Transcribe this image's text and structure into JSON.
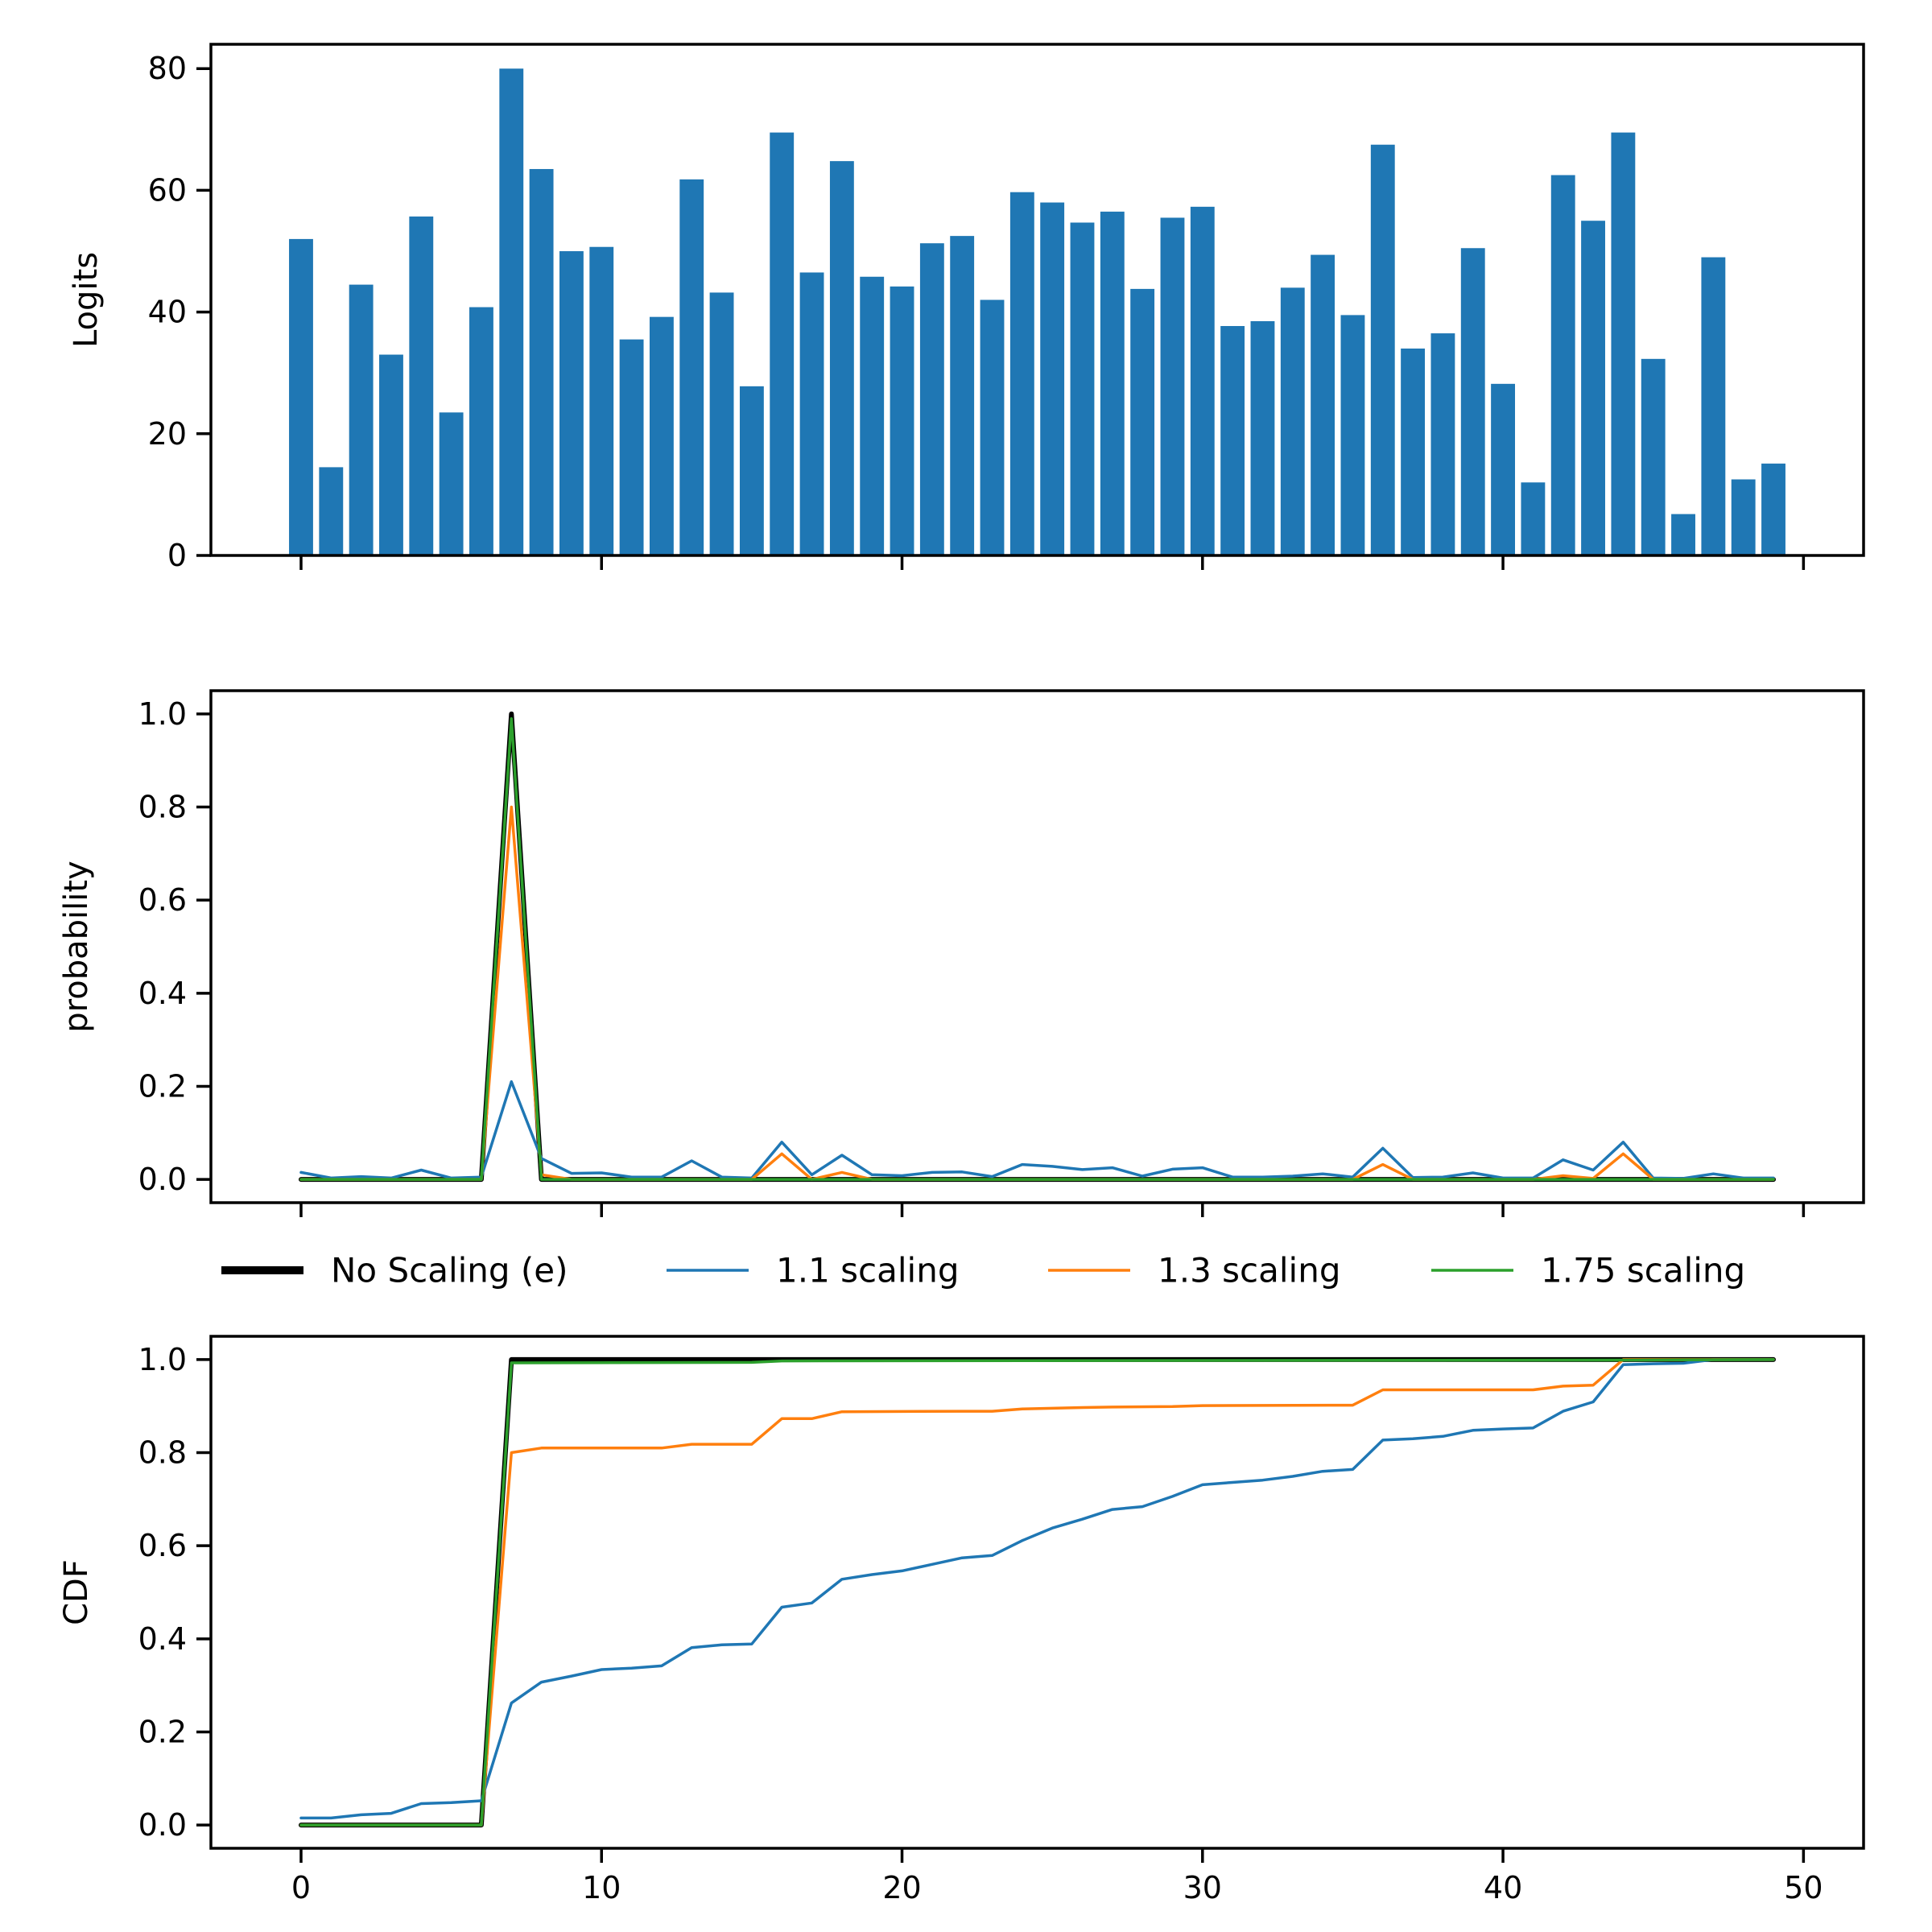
{
  "chart_data": [
    {
      "type": "bar",
      "ylabel": "Logits",
      "ylim": [
        0,
        84
      ],
      "xlim": [
        -3,
        52
      ],
      "yticks": [
        "0",
        "20",
        "40",
        "60",
        "80"
      ],
      "xticks": [
        0,
        10,
        20,
        30,
        40,
        50
      ],
      "x_tick_labels_shown": false,
      "color": "#1f77b4",
      "x": [
        0,
        1,
        2,
        3,
        4,
        5,
        6,
        7,
        8,
        9,
        10,
        11,
        12,
        13,
        14,
        15,
        16,
        17,
        18,
        19,
        20,
        21,
        22,
        23,
        24,
        25,
        26,
        27,
        28,
        29,
        30,
        31,
        32,
        33,
        34,
        35,
        36,
        37,
        38,
        39,
        40,
        41,
        42,
        43,
        44,
        45,
        46,
        47,
        48,
        49
      ],
      "values": [
        52,
        14.5,
        44.5,
        33,
        55.7,
        23.5,
        40.8,
        80,
        63.5,
        50,
        50.7,
        35.5,
        39.2,
        61.8,
        43.2,
        27.8,
        69.5,
        46.5,
        64.8,
        45.8,
        44.2,
        51.3,
        52.5,
        42,
        59.7,
        58,
        54.7,
        56.5,
        43.8,
        55.5,
        57.3,
        37.7,
        38.5,
        44,
        49.4,
        39.5,
        67.5,
        34,
        36.5,
        50.5,
        28.2,
        12,
        62.5,
        55,
        69.5,
        32.3,
        6.8,
        49,
        12.5,
        15.1
      ]
    },
    {
      "type": "line",
      "ylabel": "probability",
      "ylim": [
        -0.05,
        1.05
      ],
      "xlim": [
        -3,
        52
      ],
      "yticks": [
        "0.0",
        "0.2",
        "0.4",
        "0.6",
        "0.8",
        "1.0"
      ],
      "xticks": [
        0,
        10,
        20,
        30,
        40,
        50
      ],
      "x_tick_labels_shown": false,
      "series": [
        {
          "name": "No Scaling (e)",
          "color": "#000000",
          "width": 6,
          "points": [
            [
              0,
              0
            ],
            [
              6,
              0
            ],
            [
              7,
              1.0
            ],
            [
              8,
              0
            ],
            [
              49,
              0
            ]
          ]
        },
        {
          "name": "1.1 scaling",
          "color": "#1f77b4",
          "width": 3.5,
          "points": [
            [
              0,
              0.015
            ],
            [
              1,
              0.003
            ],
            [
              2,
              0.006
            ],
            [
              3,
              0.003
            ],
            [
              4,
              0.02
            ],
            [
              5,
              0.003
            ],
            [
              6,
              0.005
            ],
            [
              7,
              0.21
            ],
            [
              8,
              0.045
            ],
            [
              9,
              0.013
            ],
            [
              10,
              0.014
            ],
            [
              11,
              0.005
            ],
            [
              12,
              0.005
            ],
            [
              13,
              0.04
            ],
            [
              14,
              0.005
            ],
            [
              15,
              0.003
            ],
            [
              16,
              0.08
            ],
            [
              17,
              0.01
            ],
            [
              18,
              0.052
            ],
            [
              19,
              0.01
            ],
            [
              20,
              0.008
            ],
            [
              21,
              0.015
            ],
            [
              22,
              0.016
            ],
            [
              23,
              0.006
            ],
            [
              24,
              0.032
            ],
            [
              25,
              0.028
            ],
            [
              26,
              0.021
            ],
            [
              27,
              0.025
            ],
            [
              28,
              0.007
            ],
            [
              29,
              0.022
            ],
            [
              30,
              0.025
            ],
            [
              31,
              0.005
            ],
            [
              32,
              0.005
            ],
            [
              33,
              0.007
            ],
            [
              34,
              0.012
            ],
            [
              35,
              0.005
            ],
            [
              36,
              0.067
            ],
            [
              37,
              0.004
            ],
            [
              38,
              0.005
            ],
            [
              39,
              0.014
            ],
            [
              40,
              0.003
            ],
            [
              41,
              0.003
            ],
            [
              42,
              0.042
            ],
            [
              43,
              0.02
            ],
            [
              44,
              0.08
            ],
            [
              45,
              0.003
            ],
            [
              46,
              0.002
            ],
            [
              47,
              0.012
            ],
            [
              48,
              0.003
            ],
            [
              49,
              0.003
            ]
          ]
        },
        {
          "name": "1.3 scaling",
          "color": "#ff7f0e",
          "width": 3.5,
          "points": [
            [
              0,
              0
            ],
            [
              6,
              0
            ],
            [
              7,
              0.8
            ],
            [
              8,
              0.01
            ],
            [
              9,
              0
            ],
            [
              15,
              0
            ],
            [
              16,
              0.055
            ],
            [
              17,
              0
            ],
            [
              18,
              0.015
            ],
            [
              19,
              0
            ],
            [
              35,
              0
            ],
            [
              36,
              0.032
            ],
            [
              37,
              0
            ],
            [
              41,
              0
            ],
            [
              42,
              0.008
            ],
            [
              43,
              0.002
            ],
            [
              44,
              0.055
            ],
            [
              45,
              0
            ],
            [
              49,
              0
            ]
          ]
        },
        {
          "name": "1.75 scaling",
          "color": "#2ca02c",
          "width": 3.5,
          "points": [
            [
              0,
              0
            ],
            [
              6,
              0
            ],
            [
              7,
              0.99
            ],
            [
              8,
              0
            ],
            [
              49,
              0
            ]
          ]
        }
      ]
    },
    {
      "type": "line",
      "ylabel": "CDF",
      "ylim": [
        -0.05,
        1.05
      ],
      "xlim": [
        -3,
        52
      ],
      "yticks": [
        "0.0",
        "0.2",
        "0.4",
        "0.6",
        "0.8",
        "1.0"
      ],
      "xticks": [
        "0",
        "10",
        "20",
        "30",
        "40",
        "50"
      ],
      "x_tick_labels_shown": true,
      "series": [
        {
          "name": "No Scaling (e)",
          "color": "#000000",
          "width": 6,
          "points": [
            [
              0,
              0
            ],
            [
              6,
              0
            ],
            [
              7,
              1.0
            ],
            [
              49,
              1.0
            ]
          ]
        },
        {
          "name": "1.1 scaling",
          "color": "#1f77b4",
          "width": 3.5,
          "points": [
            [
              0,
              0.015
            ],
            [
              1,
              0.015
            ],
            [
              2,
              0.022
            ],
            [
              3,
              0.025
            ],
            [
              4,
              0.046
            ],
            [
              5,
              0.048
            ],
            [
              6,
              0.052
            ],
            [
              7,
              0.262
            ],
            [
              8,
              0.307
            ],
            [
              9,
              0.32
            ],
            [
              10,
              0.334
            ],
            [
              11,
              0.337
            ],
            [
              12,
              0.342
            ],
            [
              13,
              0.381
            ],
            [
              14,
              0.387
            ],
            [
              15,
              0.389
            ],
            [
              16,
              0.468
            ],
            [
              17,
              0.477
            ],
            [
              18,
              0.528
            ],
            [
              19,
              0.538
            ],
            [
              20,
              0.546
            ],
            [
              21,
              0.56
            ],
            [
              22,
              0.574
            ],
            [
              23,
              0.579
            ],
            [
              24,
              0.611
            ],
            [
              25,
              0.638
            ],
            [
              26,
              0.657
            ],
            [
              27,
              0.678
            ],
            [
              28,
              0.684
            ],
            [
              29,
              0.706
            ],
            [
              30,
              0.731
            ],
            [
              31,
              0.736
            ],
            [
              32,
              0.741
            ],
            [
              33,
              0.749
            ],
            [
              34,
              0.76
            ],
            [
              35,
              0.764
            ],
            [
              36,
              0.827
            ],
            [
              37,
              0.83
            ],
            [
              38,
              0.835
            ],
            [
              39,
              0.848
            ],
            [
              40,
              0.851
            ],
            [
              41,
              0.853
            ],
            [
              42,
              0.889
            ],
            [
              43,
              0.909
            ],
            [
              44,
              0.989
            ],
            [
              45,
              0.991
            ],
            [
              46,
              0.992
            ],
            [
              47,
              1.0
            ],
            [
              48,
              1.0
            ],
            [
              49,
              1.0
            ]
          ]
        },
        {
          "name": "1.3 scaling",
          "color": "#ff7f0e",
          "width": 3.5,
          "points": [
            [
              0,
              0
            ],
            [
              6,
              0
            ],
            [
              7,
              0.8
            ],
            [
              8,
              0.81
            ],
            [
              9,
              0.81
            ],
            [
              12,
              0.81
            ],
            [
              13,
              0.818
            ],
            [
              15,
              0.818
            ],
            [
              16,
              0.873
            ],
            [
              17,
              0.873
            ],
            [
              18,
              0.888
            ],
            [
              22,
              0.889
            ],
            [
              23,
              0.889
            ],
            [
              24,
              0.894
            ],
            [
              26,
              0.897
            ],
            [
              27,
              0.898
            ],
            [
              29,
              0.899
            ],
            [
              30,
              0.901
            ],
            [
              35,
              0.902
            ],
            [
              36,
              0.935
            ],
            [
              41,
              0.935
            ],
            [
              42,
              0.943
            ],
            [
              43,
              0.945
            ],
            [
              44,
              1.0
            ],
            [
              49,
              1.0
            ]
          ]
        },
        {
          "name": "1.75 scaling",
          "color": "#2ca02c",
          "width": 3.5,
          "points": [
            [
              0,
              0
            ],
            [
              6,
              0
            ],
            [
              7,
              0.993
            ],
            [
              15,
              0.994
            ],
            [
              16,
              0.997
            ],
            [
              44,
              0.999
            ],
            [
              49,
              1.0
            ]
          ]
        }
      ]
    }
  ],
  "legend": {
    "placement": "between middle and bottom panels",
    "items": [
      {
        "label": "No Scaling (e)",
        "color": "#000000",
        "thick": true
      },
      {
        "label": "1.1 scaling",
        "color": "#1f77b4",
        "thick": false
      },
      {
        "label": "1.3 scaling",
        "color": "#ff7f0e",
        "thick": false
      },
      {
        "label": "1.75 scaling",
        "color": "#2ca02c",
        "thick": false
      }
    ]
  }
}
